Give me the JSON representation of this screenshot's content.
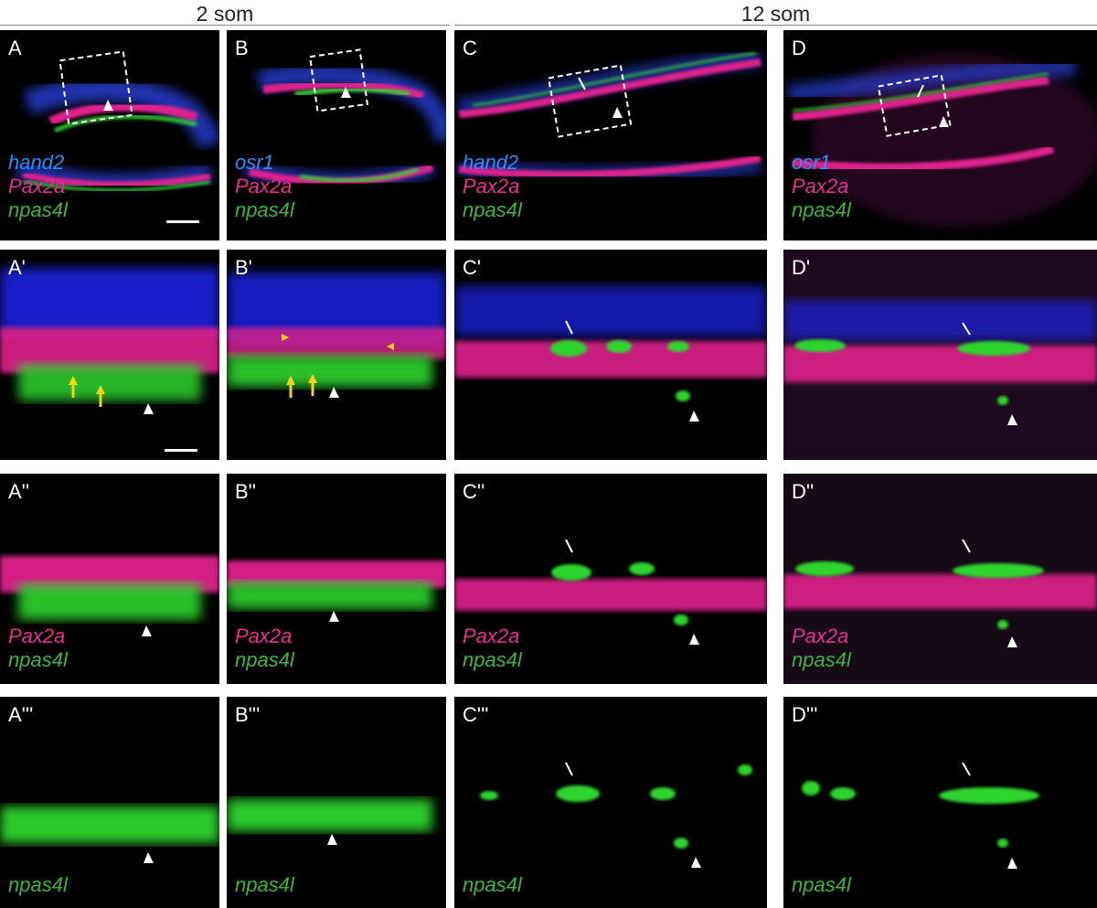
{
  "headers": {
    "left": "2 som",
    "right": "12 som"
  },
  "colors": {
    "blue_channel": "#2a8ff7",
    "magenta_channel": "#e8318e",
    "green_channel": "#3fb43f",
    "yellow_marker": "#f5d312",
    "background": "#000000"
  },
  "panels": {
    "A": {
      "label": "A",
      "legend": [
        "hand2",
        "Pax2a",
        "npas4l"
      ]
    },
    "B": {
      "label": "B",
      "legend": [
        "osr1",
        "Pax2a",
        "npas4l"
      ]
    },
    "C": {
      "label": "C",
      "legend": [
        "hand2",
        "Pax2a",
        "npas4l"
      ]
    },
    "D": {
      "label": "D",
      "legend": [
        "osr1",
        "Pax2a",
        "npas4l"
      ]
    },
    "A1": {
      "label": "A'"
    },
    "B1": {
      "label": "B'"
    },
    "C1": {
      "label": "C'"
    },
    "D1": {
      "label": "D'"
    },
    "A2": {
      "label": "A''",
      "legend": [
        "Pax2a",
        "npas4l"
      ]
    },
    "B2": {
      "label": "B''",
      "legend": [
        "Pax2a",
        "npas4l"
      ]
    },
    "C2": {
      "label": "C''",
      "legend": [
        "Pax2a",
        "npas4l"
      ]
    },
    "D2": {
      "label": "D''",
      "legend": [
        "Pax2a",
        "npas4l"
      ]
    },
    "A3": {
      "label": "A'''",
      "legend": [
        "npas4l"
      ]
    },
    "B3": {
      "label": "B'''",
      "legend": [
        "npas4l"
      ]
    },
    "C3": {
      "label": "C'''",
      "legend": [
        "npas4l"
      ]
    },
    "D3": {
      "label": "D'''",
      "legend": [
        "npas4l"
      ]
    }
  }
}
